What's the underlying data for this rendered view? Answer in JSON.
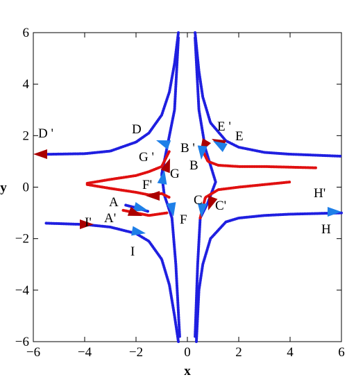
{
  "chart_data": {
    "type": "line",
    "x_label": "x",
    "y_label": "y",
    "xlim": [
      -6,
      6
    ],
    "ylim": [
      -6,
      6
    ],
    "xticks": [
      {
        "value": -6,
        "label": "−6"
      },
      {
        "value": -4,
        "label": "−4"
      },
      {
        "value": -2,
        "label": "−2"
      },
      0,
      2,
      4,
      6
    ],
    "yticks": [
      {
        "value": -6,
        "label": "−6"
      },
      {
        "value": -4,
        "label": "−4"
      },
      {
        "value": -2,
        "label": "−2"
      },
      0,
      2,
      4,
      6
    ],
    "series": [
      {
        "color": "#1f1fe0",
        "x": [
          -5.8,
          -4,
          -3,
          -2,
          -1.5,
          -1,
          -0.7,
          -0.5,
          -0.35
        ],
        "y": [
          1.27,
          1.3,
          1.4,
          1.75,
          2.1,
          2.8,
          3.7,
          4.8,
          6
        ]
      },
      {
        "color": "#1f1fe0",
        "x": [
          0.3,
          0.45,
          0.6,
          0.9,
          1.5,
          2,
          3,
          4,
          6
        ],
        "y": [
          6,
          4.5,
          3.5,
          2.5,
          1.8,
          1.55,
          1.35,
          1.28,
          1.2
        ]
      },
      {
        "color": "#1f1fe0",
        "x": [
          0.35,
          0.45,
          0.6,
          0.9,
          1.5,
          2,
          3,
          4,
          6
        ],
        "y": [
          -6,
          -4,
          -3,
          -2,
          -1.35,
          -1.2,
          -1.1,
          -1.05,
          -1.0
        ]
      },
      {
        "color": "#1f1fe0",
        "x": [
          -5.5,
          -4,
          -3,
          -2,
          -1.5,
          -1,
          -0.7,
          -0.5,
          -0.35
        ],
        "y": [
          -1.4,
          -1.45,
          -1.55,
          -1.8,
          -2.1,
          -2.8,
          -3.8,
          -5,
          -6
        ]
      },
      {
        "color": "#1f1fe0",
        "x": [
          -0.35,
          -0.5,
          -0.8,
          -1.0,
          -0.9,
          -0.6,
          -0.45,
          -0.3
        ],
        "y": [
          5.8,
          3,
          1.5,
          0.5,
          -0.3,
          -1.2,
          -3,
          -5.8
        ]
      },
      {
        "color": "#1f1fe0",
        "x": [
          0.3,
          0.45,
          0.7,
          1.1,
          0.8,
          0.5,
          0.4,
          0.3
        ],
        "y": [
          5.8,
          3,
          1.5,
          0.2,
          -0.6,
          -1.2,
          -3,
          -5.8
        ]
      },
      {
        "color": "#1f1fe0",
        "x": [
          -2.4,
          -2,
          -1.5
        ],
        "y": [
          -0.7,
          -0.8,
          -0.95
        ]
      },
      {
        "color": "#e01010",
        "x": [
          -3.9,
          -3,
          -2,
          -1.5,
          -1,
          -0.8,
          -0.7
        ],
        "y": [
          0.15,
          0.3,
          0.45,
          0.6,
          0.8,
          1.2,
          1.4
        ]
      },
      {
        "color": "#e01010",
        "x": [
          0.6,
          0.8,
          1.2,
          2,
          3,
          5
        ],
        "y": [
          1.4,
          1.0,
          0.85,
          0.8,
          0.8,
          0.75
        ]
      },
      {
        "color": "#e01010",
        "x": [
          -2.5,
          -1.5,
          -0.8
        ],
        "y": [
          -0.9,
          -1.1,
          -1.0
        ]
      },
      {
        "color": "#e01010",
        "x": [
          -3.9,
          -3,
          -2,
          -1.5,
          -1,
          -0.7
        ],
        "y": [
          0.1,
          -0.05,
          -0.2,
          -0.3,
          -0.25,
          -0.4
        ]
      },
      {
        "color": "#e01010",
        "x": [
          0.5,
          0.7,
          1.2,
          2,
          3,
          4
        ],
        "y": [
          -1.2,
          -0.4,
          -0.1,
          0,
          0.1,
          0.2
        ]
      }
    ],
    "annotations": [
      "D '",
      "D",
      "E '",
      "E",
      "G '",
      "B '",
      "G",
      "B",
      "F'",
      "H'",
      "A",
      "C",
      "C'",
      "A'",
      "F",
      "I'",
      "H",
      "I"
    ]
  }
}
